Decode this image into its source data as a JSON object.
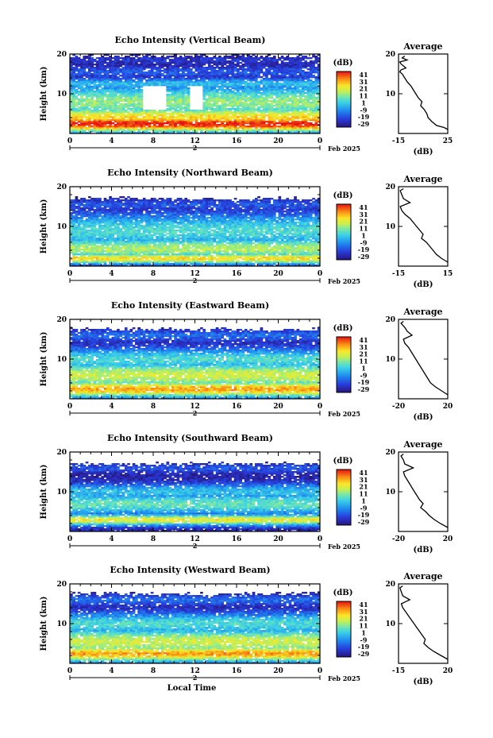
{
  "chart_data": [
    {
      "type": "heatmap",
      "title": "Echo Intensity (Vertical Beam)",
      "ylabel": "Height (km)",
      "ylim": [
        0,
        20
      ],
      "yticks": [
        "20",
        "10"
      ],
      "xlim": [
        0,
        24
      ],
      "xticks": [
        "0",
        "4",
        "8",
        "12",
        "16",
        "20",
        "0"
      ],
      "date_label": "Feb 2025",
      "day_label": "2",
      "colorbar": {
        "unit": "(dB)",
        "ticks": [
          "41",
          "31",
          "21",
          "11",
          "1",
          "-9",
          "-19",
          "-29"
        ],
        "range": [
          -29,
          41
        ]
      },
      "average": {
        "title": "Average",
        "xlabel": "(dB)",
        "xticks": [
          "-15",
          "25"
        ],
        "xlim": [
          -15,
          25
        ],
        "yticks": [
          "20",
          "10"
        ],
        "height": [
          19.5,
          19,
          18.5,
          18,
          17.5,
          17,
          16.5,
          16,
          15.5,
          15,
          14,
          13,
          12,
          11,
          10,
          9,
          8,
          7,
          6,
          5,
          4,
          3,
          2,
          1.5,
          1
        ],
        "db": [
          -10,
          -12,
          -8,
          -14,
          -13,
          -11,
          -9,
          -13,
          -14,
          -12,
          -10,
          -8,
          -5,
          -3,
          -1,
          1,
          4,
          3,
          6,
          8,
          9,
          12,
          16,
          22,
          25
        ]
      },
      "field": {
        "layers": [
          [
            2.5,
            41,
            1.5
          ],
          [
            4,
            25,
            2
          ],
          [
            8,
            12,
            3
          ],
          [
            12.5,
            0,
            1
          ],
          [
            15.5,
            -15,
            1
          ],
          [
            18.5,
            -20,
            0.6
          ]
        ],
        "cloud_top": 19.5,
        "gap": [
          [
            7,
            9,
            6,
            12
          ],
          [
            11.5,
            12.5,
            6,
            12
          ]
        ]
      }
    },
    {
      "type": "heatmap",
      "title": "Echo Intensity (Northward Beam)",
      "ylabel": "Height (km)",
      "ylim": [
        0,
        20
      ],
      "yticks": [
        "20",
        "10"
      ],
      "xlim": [
        0,
        24
      ],
      "xticks": [
        "0",
        "4",
        "8",
        "12",
        "16",
        "20",
        "0"
      ],
      "date_label": "Feb 2025",
      "day_label": "2",
      "colorbar": {
        "unit": "(dB)",
        "ticks": [
          "41",
          "31",
          "21",
          "11",
          "1",
          "-9",
          "-19",
          "-29"
        ],
        "range": [
          -29,
          41
        ]
      },
      "average": {
        "title": "Average",
        "xlabel": "(dB)",
        "xticks": [
          "-15",
          "15"
        ],
        "xlim": [
          -15,
          15
        ],
        "yticks": [
          "20",
          "10"
        ],
        "height": [
          19.5,
          19,
          18,
          17,
          16,
          15,
          14,
          13,
          12,
          11,
          10,
          9,
          8,
          7,
          6,
          5,
          4,
          3,
          2,
          1
        ],
        "db": [
          -12,
          -14,
          -13,
          -12,
          -8,
          -14,
          -13,
          -11,
          -8,
          -6,
          -4,
          -2,
          0,
          -1,
          2,
          4,
          6,
          8,
          11,
          15
        ]
      },
      "field": {
        "layers": [
          [
            2,
            25,
            1
          ],
          [
            4.5,
            15,
            2
          ],
          [
            9,
            5,
            3
          ],
          [
            15.5,
            -15,
            1
          ]
        ],
        "cloud_top": 17,
        "gap": []
      }
    },
    {
      "type": "heatmap",
      "title": "Echo Intensity (Eastward Beam)",
      "ylabel": "Height (km)",
      "ylim": [
        0,
        20
      ],
      "yticks": [
        "20",
        "10"
      ],
      "xlim": [
        0,
        24
      ],
      "xticks": [
        "0",
        "4",
        "8",
        "12",
        "16",
        "20",
        "0"
      ],
      "date_label": "Feb 2025",
      "day_label": "2",
      "colorbar": {
        "unit": "(dB)",
        "ticks": [
          "41",
          "31",
          "21",
          "11",
          "1",
          "-9",
          "-19",
          "-29"
        ],
        "range": [
          -29,
          41
        ]
      },
      "average": {
        "title": "Average",
        "xlabel": "(dB)",
        "xticks": [
          "-20",
          "20"
        ],
        "xlim": [
          -20,
          20
        ],
        "yticks": [
          "20",
          "10"
        ],
        "height": [
          19.5,
          19,
          18,
          17,
          16,
          15,
          14,
          13,
          12,
          11,
          10,
          9,
          8,
          7,
          6,
          5,
          4,
          3,
          2,
          1
        ],
        "db": [
          -16,
          -18,
          -15,
          -13,
          -9,
          -16,
          -15,
          -12,
          -10,
          -8,
          -6,
          -4,
          -2,
          0,
          2,
          4,
          6,
          10,
          15,
          20
        ]
      },
      "field": {
        "layers": [
          [
            2.5,
            30,
            1.5
          ],
          [
            6,
            18,
            2.5
          ],
          [
            10,
            5,
            2
          ],
          [
            16,
            -12,
            1
          ]
        ],
        "cloud_top": 17.5,
        "gap": []
      }
    },
    {
      "type": "heatmap",
      "title": "Echo Intensity (Southward Beam)",
      "ylabel": "Height (km)",
      "ylim": [
        0,
        20
      ],
      "yticks": [
        "20",
        "10"
      ],
      "xlim": [
        0,
        24
      ],
      "xticks": [
        "0",
        "4",
        "8",
        "12",
        "16",
        "20",
        "0"
      ],
      "date_label": "Feb 2025",
      "day_label": "2",
      "colorbar": {
        "unit": "(dB)",
        "ticks": [
          "41",
          "31",
          "21",
          "11",
          "1",
          "-9",
          "-19",
          "-29"
        ],
        "range": [
          -29,
          41
        ]
      },
      "average": {
        "title": "Average",
        "xlabel": "(dB)",
        "xticks": [
          "-20",
          "20"
        ],
        "xlim": [
          -20,
          20
        ],
        "yticks": [
          "20",
          "10"
        ],
        "height": [
          19.5,
          19,
          18,
          17,
          16,
          15,
          14,
          13,
          12,
          11,
          10,
          9,
          8,
          7,
          6,
          5,
          4,
          3,
          2,
          1
        ],
        "db": [
          -16,
          -18,
          -16,
          -15,
          -8,
          -16,
          -15,
          -13,
          -11,
          -9,
          -7,
          -5,
          -3,
          0,
          -2,
          2,
          5,
          9,
          14,
          20
        ]
      },
      "field": {
        "layers": [
          [
            3,
            22,
            1
          ],
          [
            7,
            8,
            2
          ],
          [
            10,
            0,
            1.5
          ],
          [
            16,
            -15,
            0.8
          ]
        ],
        "cloud_top": 17,
        "gap": []
      }
    },
    {
      "type": "heatmap",
      "title": "Echo Intensity (Westward Beam)",
      "ylabel": "Height (km)",
      "ylim": [
        0,
        20
      ],
      "yticks": [
        "20",
        "10"
      ],
      "xlim": [
        0,
        24
      ],
      "xticks": [
        "0",
        "4",
        "8",
        "12",
        "16",
        "20",
        "0"
      ],
      "date_label": "Feb 2025",
      "day_label": "2",
      "xlabel": "Local Time",
      "colorbar": {
        "unit": "(dB)",
        "ticks": [
          "41",
          "31",
          "21",
          "11",
          "1",
          "-9",
          "-19",
          "-29"
        ],
        "range": [
          -29,
          41
        ]
      },
      "average": {
        "title": "Average",
        "xlabel": "(dB)",
        "xticks": [
          "-15",
          "20"
        ],
        "xlim": [
          -15,
          20
        ],
        "yticks": [
          "20",
          "10"
        ],
        "height": [
          19.5,
          19,
          18,
          17,
          16,
          15,
          14,
          13,
          12,
          11,
          10,
          9,
          8,
          7,
          6,
          5,
          4,
          3,
          2,
          1
        ],
        "db": [
          -12,
          -14,
          -13,
          -12,
          -7,
          -13,
          -12,
          -10,
          -8,
          -6,
          -4,
          -2,
          0,
          2,
          4,
          3,
          6,
          10,
          15,
          20
        ]
      },
      "field": {
        "layers": [
          [
            2.5,
            30,
            1.5
          ],
          [
            5.5,
            18,
            2.5
          ],
          [
            10,
            5,
            2
          ],
          [
            16,
            -12,
            1
          ]
        ],
        "cloud_top": 17.5,
        "gap": []
      }
    }
  ]
}
